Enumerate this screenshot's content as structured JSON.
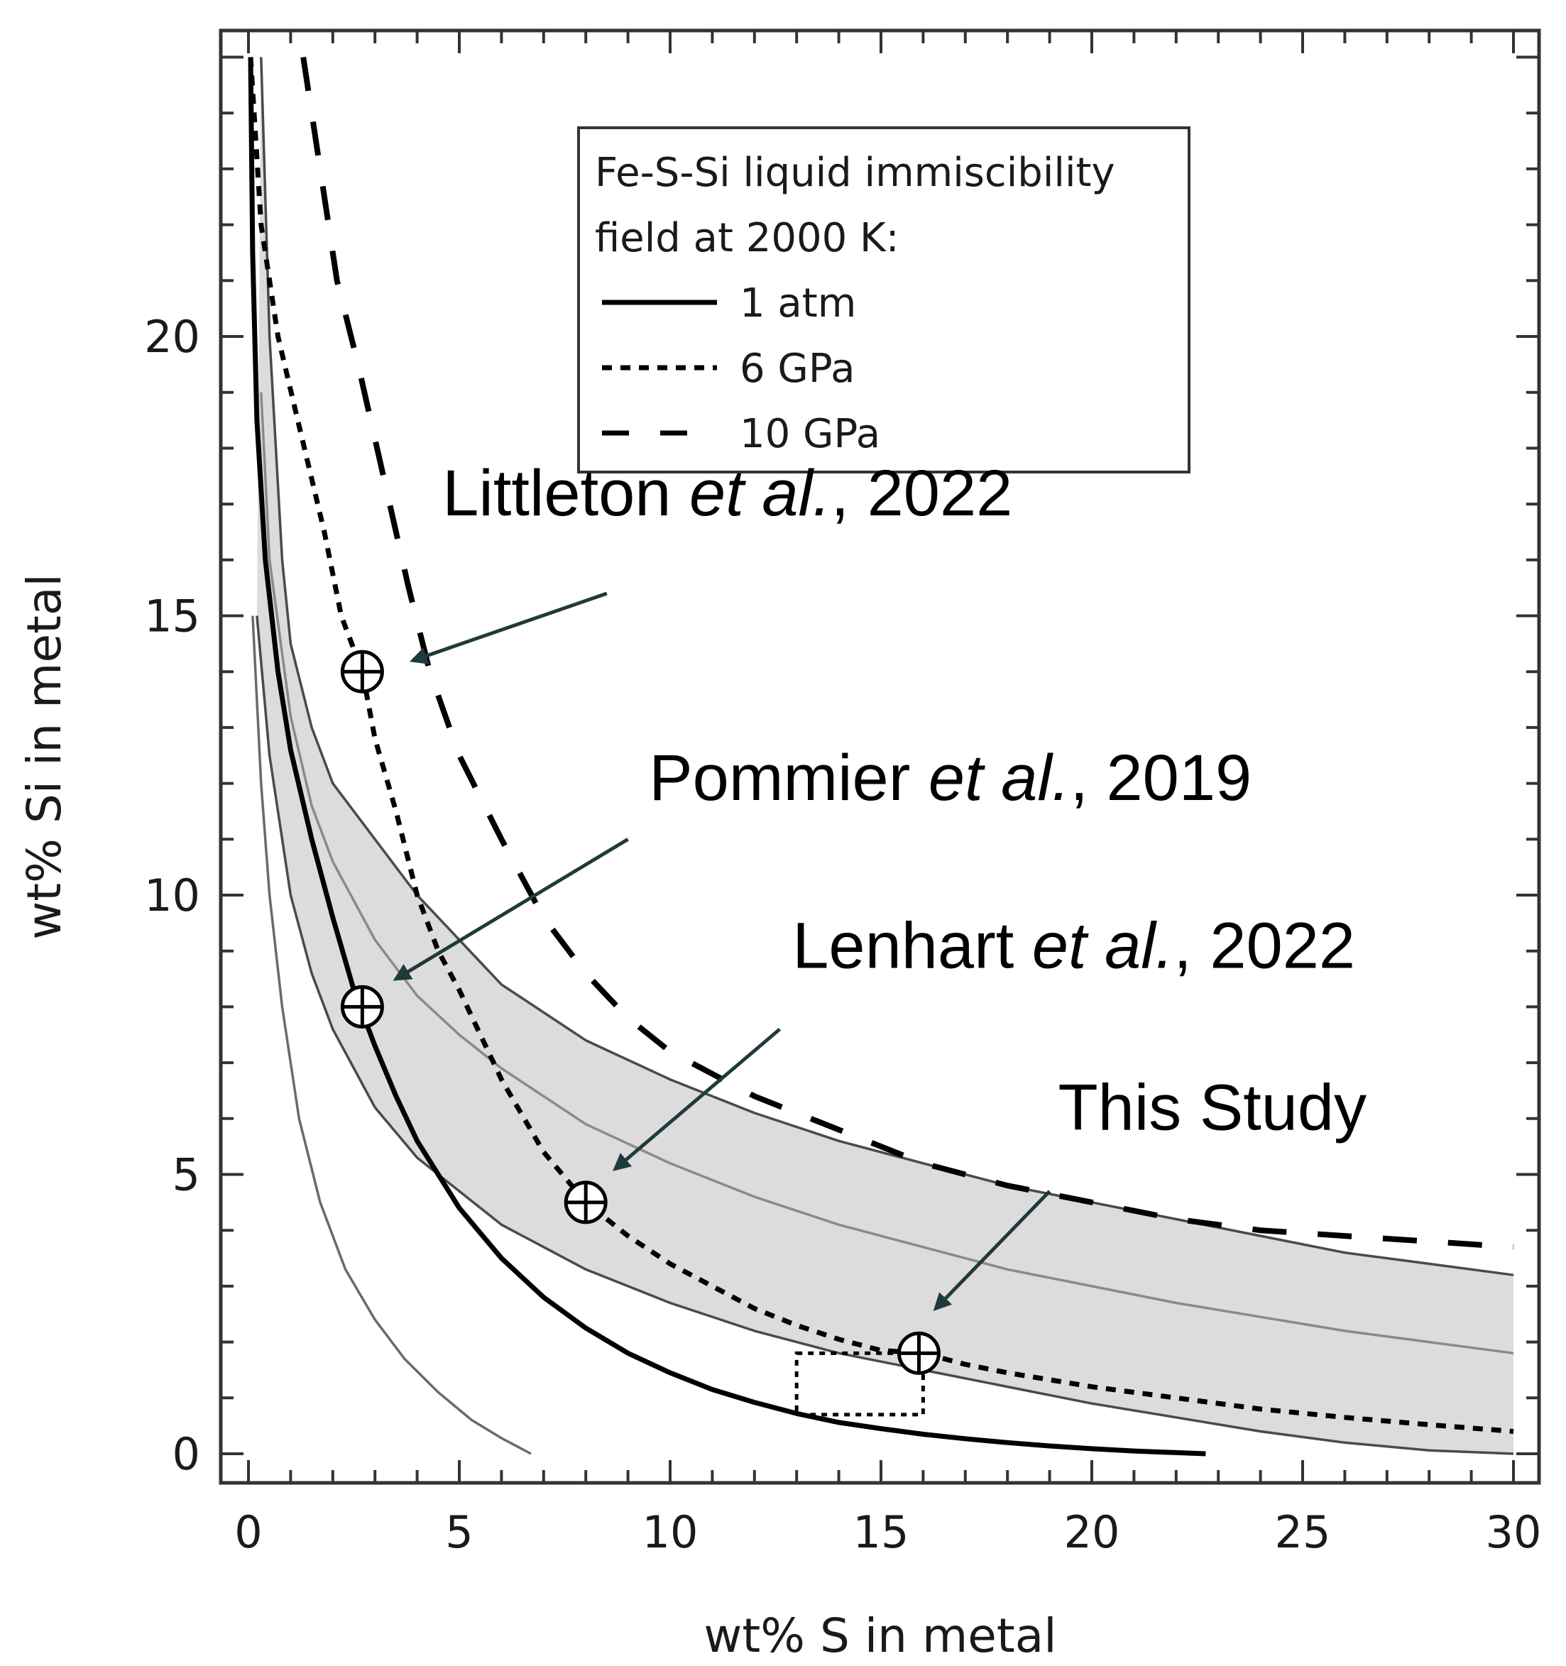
{
  "chart_data": {
    "type": "line",
    "xlabel": "wt% S in metal",
    "ylabel": "wt% Si in metal",
    "xlim": [
      0,
      30
    ],
    "ylim": [
      0,
      25
    ],
    "xticks": [
      0,
      5,
      10,
      15,
      20,
      25,
      30
    ],
    "yticks": [
      0,
      5,
      10,
      15,
      20
    ],
    "xtick_labels": [
      "0",
      "5",
      "10",
      "15",
      "20",
      "25",
      "30"
    ],
    "ytick_labels": [
      "0",
      "5",
      "10",
      "15",
      "20"
    ],
    "grid": false,
    "legend": {
      "title_lines": [
        "Fe-S-Si liquid immiscibility",
        "field at 2000 K:"
      ],
      "placement": "top-center",
      "entries": [
        {
          "label": "1 atm",
          "style": "solid"
        },
        {
          "label": "6 GPa",
          "style": "dotted"
        },
        {
          "label": "10 GPa",
          "style": "dashed"
        }
      ]
    },
    "series": [
      {
        "name": "1 atm",
        "style": "solid",
        "color": "#000000",
        "points": [
          [
            0.05,
            25
          ],
          [
            0.1,
            21.5
          ],
          [
            0.2,
            18.5
          ],
          [
            0.4,
            16
          ],
          [
            0.7,
            14
          ],
          [
            1,
            12.6
          ],
          [
            1.5,
            11
          ],
          [
            2,
            9.6
          ],
          [
            2.5,
            8.3
          ],
          [
            3,
            7.3
          ],
          [
            3.5,
            6.4
          ],
          [
            4,
            5.6
          ],
          [
            5,
            4.4
          ],
          [
            6,
            3.5
          ],
          [
            7,
            2.8
          ],
          [
            8,
            2.25
          ],
          [
            9,
            1.8
          ],
          [
            10,
            1.45
          ],
          [
            11,
            1.15
          ],
          [
            12,
            0.92
          ],
          [
            13,
            0.72
          ],
          [
            14,
            0.56
          ],
          [
            15,
            0.45
          ],
          [
            16,
            0.35
          ],
          [
            17,
            0.27
          ],
          [
            18,
            0.2
          ],
          [
            19,
            0.14
          ],
          [
            20,
            0.09
          ],
          [
            21,
            0.05
          ],
          [
            22,
            0.02
          ],
          [
            22.7,
            0
          ]
        ]
      },
      {
        "name": "6 GPa",
        "style": "dotted",
        "color": "#000000",
        "points": [
          [
            0.05,
            25
          ],
          [
            0.3,
            22
          ],
          [
            0.7,
            20
          ],
          [
            1.2,
            18.4
          ],
          [
            1.8,
            16.5
          ],
          [
            2.2,
            15
          ],
          [
            2.7,
            14
          ],
          [
            3,
            12.8
          ],
          [
            3.5,
            11.5
          ],
          [
            4,
            10
          ],
          [
            4.5,
            9
          ],
          [
            5,
            8.3
          ],
          [
            6,
            6.7
          ],
          [
            7,
            5.4
          ],
          [
            8,
            4.5
          ],
          [
            9,
            3.9
          ],
          [
            10,
            3.4
          ],
          [
            11,
            3
          ],
          [
            12,
            2.6
          ],
          [
            13,
            2.3
          ],
          [
            14,
            2.05
          ],
          [
            15,
            1.85
          ],
          [
            16,
            1.8
          ],
          [
            17,
            1.6
          ],
          [
            18,
            1.45
          ],
          [
            20,
            1.2
          ],
          [
            22,
            1
          ],
          [
            24,
            0.8
          ],
          [
            26,
            0.65
          ],
          [
            28,
            0.52
          ],
          [
            30,
            0.4
          ]
        ]
      },
      {
        "name": "10 GPa",
        "style": "dashed",
        "color": "#000000",
        "points": [
          [
            1.3,
            25
          ],
          [
            1.7,
            23
          ],
          [
            2.1,
            21
          ],
          [
            2.6,
            19.5
          ],
          [
            3.2,
            17.5
          ],
          [
            3.8,
            15.5
          ],
          [
            4.3,
            14
          ],
          [
            5,
            12.5
          ],
          [
            6,
            11
          ],
          [
            7,
            9.6
          ],
          [
            8,
            8.6
          ],
          [
            9,
            7.8
          ],
          [
            10,
            7.2
          ],
          [
            12,
            6.4
          ],
          [
            14,
            5.8
          ],
          [
            16,
            5.2
          ],
          [
            18,
            4.8
          ],
          [
            20,
            4.5
          ],
          [
            22,
            4.2
          ],
          [
            24,
            4
          ],
          [
            26,
            3.9
          ],
          [
            28,
            3.8
          ],
          [
            30,
            3.7
          ]
        ]
      },
      {
        "name": "band upper",
        "style": "solid-thin",
        "color": "#4a4a4a",
        "points": [
          [
            0.3,
            25
          ],
          [
            0.5,
            20
          ],
          [
            0.8,
            16
          ],
          [
            1,
            14.5
          ],
          [
            1.5,
            13
          ],
          [
            2,
            12
          ],
          [
            3,
            11
          ],
          [
            4,
            10
          ],
          [
            5,
            9.2
          ],
          [
            6,
            8.4
          ],
          [
            8,
            7.4
          ],
          [
            10,
            6.7
          ],
          [
            12,
            6.1
          ],
          [
            14,
            5.6
          ],
          [
            16,
            5.2
          ],
          [
            18,
            4.8
          ],
          [
            20,
            4.5
          ],
          [
            22,
            4.2
          ],
          [
            24,
            3.9
          ],
          [
            26,
            3.6
          ],
          [
            28,
            3.4
          ],
          [
            30,
            3.2
          ]
        ]
      },
      {
        "name": "band middle",
        "style": "solid-thin",
        "color": "#8a8a8a",
        "points": [
          [
            0.3,
            19
          ],
          [
            0.5,
            16
          ],
          [
            1,
            13.2
          ],
          [
            1.5,
            11.6
          ],
          [
            2,
            10.6
          ],
          [
            3,
            9.2
          ],
          [
            4,
            8.2
          ],
          [
            5,
            7.5
          ],
          [
            6,
            6.9
          ],
          [
            8,
            5.9
          ],
          [
            10,
            5.2
          ],
          [
            12,
            4.6
          ],
          [
            14,
            4.1
          ],
          [
            16,
            3.7
          ],
          [
            18,
            3.3
          ],
          [
            20,
            3
          ],
          [
            22,
            2.7
          ],
          [
            24,
            2.45
          ],
          [
            26,
            2.2
          ],
          [
            28,
            2
          ],
          [
            30,
            1.8
          ]
        ]
      },
      {
        "name": "band lower",
        "style": "solid-thin",
        "color": "#4a4a4a",
        "points": [
          [
            0.2,
            15
          ],
          [
            0.5,
            12.5
          ],
          [
            1,
            10
          ],
          [
            1.5,
            8.6
          ],
          [
            2,
            7.6
          ],
          [
            3,
            6.2
          ],
          [
            4,
            5.3
          ],
          [
            5,
            4.7
          ],
          [
            6,
            4.1
          ],
          [
            8,
            3.3
          ],
          [
            10,
            2.7
          ],
          [
            12,
            2.2
          ],
          [
            14,
            1.8
          ],
          [
            16,
            1.5
          ],
          [
            18,
            1.2
          ],
          [
            20,
            0.9
          ],
          [
            22,
            0.65
          ],
          [
            24,
            0.4
          ],
          [
            26,
            0.2
          ],
          [
            28,
            0.06
          ],
          [
            30,
            0
          ]
        ]
      },
      {
        "name": "outer thin curve",
        "style": "solid-thin",
        "color": "#6a6a6a",
        "points": [
          [
            0.1,
            15
          ],
          [
            0.3,
            12
          ],
          [
            0.5,
            10
          ],
          [
            0.8,
            8
          ],
          [
            1.2,
            6
          ],
          [
            1.7,
            4.5
          ],
          [
            2.3,
            3.3
          ],
          [
            3,
            2.4
          ],
          [
            3.7,
            1.7
          ],
          [
            4.5,
            1.1
          ],
          [
            5.3,
            0.6
          ],
          [
            6,
            0.28
          ],
          [
            6.7,
            0
          ]
        ]
      }
    ],
    "shaded_band": {
      "between": [
        "band upper",
        "band lower"
      ],
      "color": "#dcdcdc"
    },
    "data_points": [
      {
        "label": "Littleton et al., 2022",
        "x": 2.7,
        "y": 14,
        "marker": "circle-plus"
      },
      {
        "label": "Pommier et al., 2019",
        "x": 2.7,
        "y": 8,
        "marker": "circle-plus"
      },
      {
        "label": "Lenhart et al., 2022",
        "x": 8,
        "y": 4.5,
        "marker": "circle-plus"
      },
      {
        "label": "This Study",
        "x": 15.9,
        "y": 1.8,
        "marker": "circle-plus"
      }
    ],
    "study_box": {
      "x0": 13,
      "x1": 16,
      "y0": 0.7,
      "y1": 1.8,
      "style": "dotted"
    },
    "annotations": [
      {
        "key": "littleton",
        "name_part": "Littleton ",
        "italic_part": "et al.",
        "tail_part": ", 2022",
        "text_x": 4.6,
        "text_y": 16.8,
        "arrow_from": [
          8.5,
          15.4
        ],
        "arrow_to": [
          3.9,
          14.2
        ]
      },
      {
        "key": "pommier",
        "name_part": "Pommier ",
        "italic_part": "et al.",
        "tail_part": ", 2019",
        "text_x": 9.5,
        "text_y": 11.7,
        "arrow_from": [
          9,
          11
        ],
        "arrow_to": [
          3.5,
          8.5
        ]
      },
      {
        "key": "lenhart",
        "name_part": "Lenhart ",
        "italic_part": "et al.",
        "tail_part": ", 2022",
        "text_x": 12.9,
        "text_y": 8.7,
        "arrow_from": [
          12.6,
          7.6
        ],
        "arrow_to": [
          8.7,
          5.1
        ]
      },
      {
        "key": "this-study",
        "name_part": "This Study",
        "italic_part": "",
        "tail_part": "",
        "text_x": 19.2,
        "text_y": 5.8,
        "arrow_from": [
          19,
          4.7
        ],
        "arrow_to": [
          16.3,
          2.6
        ]
      }
    ]
  }
}
